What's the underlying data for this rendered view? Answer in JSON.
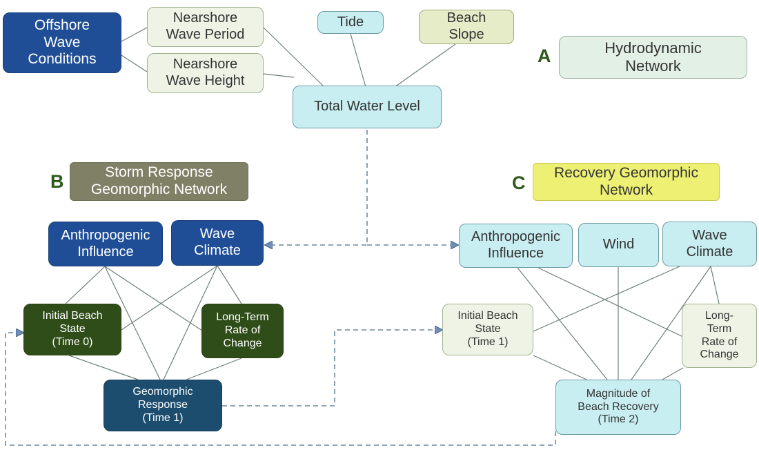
{
  "colors": {
    "connector": "#6b7f73",
    "dashed_connector": "#4d6f86",
    "arrowhead": "#6f8fb8"
  },
  "panels": {
    "a": {
      "letter": "A",
      "title_lines": [
        "Hydrodynamic",
        "Network"
      ]
    },
    "b": {
      "letter": "B",
      "title_lines": [
        "Storm Response",
        "Geomorphic Network"
      ]
    },
    "c": {
      "letter": "C",
      "title_lines": [
        "Recovery Geomorphic",
        "Network"
      ]
    }
  },
  "hydro": {
    "offshore": [
      "Offshore",
      "Wave",
      "Conditions"
    ],
    "wave_period": [
      "Nearshore",
      "Wave Period"
    ],
    "wave_height": [
      "Nearshore",
      "Wave Height"
    ],
    "tide": [
      "Tide"
    ],
    "beach_slope": [
      "Beach",
      "Slope"
    ],
    "total_water_level": [
      "Total Water Level"
    ]
  },
  "storm": {
    "anthropogenic": [
      "Anthropogenic",
      "Influence"
    ],
    "wave_climate": [
      "Wave",
      "Climate"
    ],
    "initial_state": [
      "Initial Beach",
      "State",
      "(Time 0)"
    ],
    "long_term": [
      "Long-Term",
      "Rate of",
      "Change"
    ],
    "response": [
      "Geomorphic",
      "Response",
      "(Time 1)"
    ]
  },
  "recovery": {
    "anthropogenic": [
      "Anthropogenic",
      "Influence"
    ],
    "wind": [
      "Wind"
    ],
    "wave_climate": [
      "Wave",
      "Climate"
    ],
    "initial_state": [
      "Initial Beach",
      "State",
      "(Time 1)"
    ],
    "long_term": [
      "Long-",
      "Term",
      "Rate of",
      "Change"
    ],
    "magnitude": [
      "Magnitude of",
      "Beach Recovery",
      "(Time 2)"
    ]
  }
}
